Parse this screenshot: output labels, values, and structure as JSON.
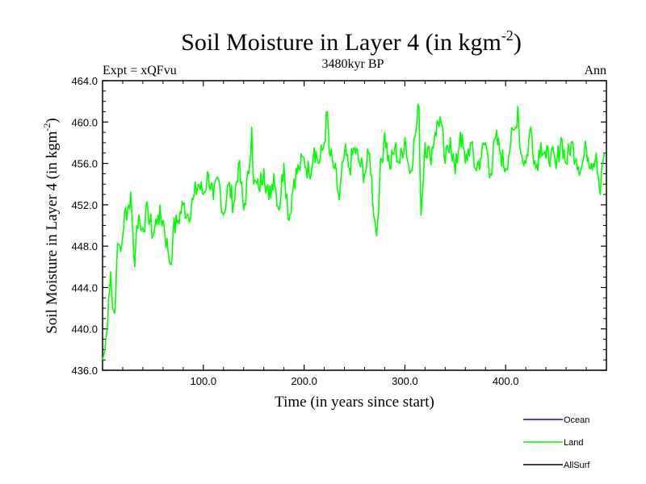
{
  "chart_data": {
    "type": "line",
    "title": "Soil Moisture in Layer 4 (in kgm",
    "title_sup": "-2",
    "title_end": ")",
    "subtitle": "3480kyr BP",
    "left_label": "Expt = xQFvu",
    "right_label": "Ann",
    "xlabel": "Time (in years since start)",
    "ylabel": "Soil Moisture in Layer 4 (in kgm",
    "ylabel_sup": "-2",
    "ylabel_end": ")",
    "xlim": [
      0,
      500
    ],
    "ylim": [
      436,
      464
    ],
    "xticks": [
      100,
      200,
      300,
      400
    ],
    "xtick_labels": [
      "100.0",
      "200.0",
      "300.0",
      "400.0"
    ],
    "yticks": [
      436,
      440,
      444,
      448,
      452,
      456,
      460,
      464
    ],
    "ytick_labels": [
      "436.0",
      "440.0",
      "444.0",
      "448.0",
      "452.0",
      "456.0",
      "460.0",
      "464.0"
    ],
    "legend": [
      {
        "name": "Ocean",
        "color": "#0000ff"
      },
      {
        "name": "Land",
        "color": "#00ff00"
      },
      {
        "name": "AllSurf",
        "color": "#000000"
      }
    ],
    "series": [
      {
        "name": "Land",
        "color": "#00ff00",
        "x": [
          0,
          2,
          4,
          6,
          8,
          10,
          12,
          14,
          16,
          18,
          20,
          22,
          24,
          26,
          28,
          30,
          32,
          34,
          36,
          38,
          40,
          45,
          50,
          55,
          60,
          65,
          68,
          70,
          75,
          80,
          85,
          90,
          95,
          100,
          105,
          110,
          115,
          120,
          125,
          130,
          135,
          140,
          145,
          148,
          150,
          155,
          160,
          165,
          170,
          175,
          180,
          185,
          190,
          195,
          200,
          205,
          210,
          215,
          220,
          223,
          225,
          230,
          235,
          240,
          245,
          250,
          255,
          260,
          265,
          270,
          272,
          275,
          280,
          285,
          290,
          295,
          300,
          305,
          310,
          314,
          316,
          320,
          325,
          330,
          335,
          340,
          345,
          350,
          355,
          360,
          365,
          370,
          375,
          380,
          385,
          390,
          395,
          400,
          405,
          410,
          412,
          415,
          420,
          425,
          430,
          435,
          440,
          445,
          450,
          455,
          460,
          465,
          470,
          475,
          480,
          485,
          490,
          494,
          496,
          498
        ],
        "y": [
          437.0,
          437.8,
          439.5,
          443.0,
          445.5,
          442.0,
          441.5,
          446.5,
          448.2,
          447.5,
          449.0,
          451.5,
          450.5,
          452.0,
          453.2,
          449.5,
          446.0,
          450.0,
          451.0,
          449.5,
          449.8,
          451.5,
          449.0,
          451.0,
          450.5,
          447.5,
          446.2,
          449.5,
          450.5,
          452.0,
          451.0,
          452.5,
          454.0,
          453.0,
          455.0,
          452.5,
          454.5,
          451.0,
          454.0,
          452.0,
          456.0,
          451.5,
          455.0,
          459.5,
          454.0,
          453.5,
          455.5,
          452.5,
          455.0,
          451.5,
          456.0,
          450.5,
          454.5,
          455.5,
          456.5,
          455.0,
          457.5,
          456.0,
          458.0,
          461.0,
          457.0,
          455.5,
          452.5,
          457.0,
          455.5,
          457.5,
          456.0,
          455.0,
          457.0,
          450.5,
          449.0,
          454.5,
          459.0,
          455.5,
          457.5,
          456.0,
          458.5,
          455.0,
          458.5,
          461.5,
          451.0,
          458.0,
          456.5,
          459.0,
          460.5,
          456.0,
          458.5,
          455.0,
          459.0,
          456.0,
          458.0,
          455.5,
          456.5,
          458.0,
          455.0,
          458.5,
          457.0,
          455.5,
          458.0,
          459.5,
          461.5,
          457.0,
          456.0,
          459.5,
          455.5,
          458.0,
          456.5,
          457.0,
          455.5,
          458.5,
          456.0,
          458.0,
          456.5,
          455.5,
          457.5,
          456.0,
          457.0,
          453.0,
          456.0,
          457.0
        ]
      }
    ]
  }
}
